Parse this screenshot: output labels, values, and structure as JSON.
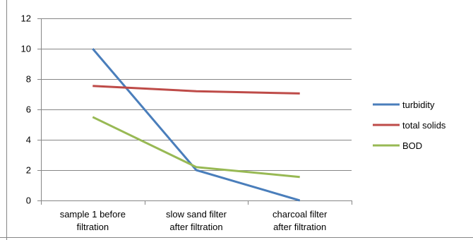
{
  "chart_data": {
    "type": "line",
    "title": "",
    "xlabel": "",
    "ylabel": "",
    "categories": [
      [
        "sample 1 before",
        "filtration"
      ],
      [
        "slow sand filter",
        "after filtration"
      ],
      [
        "charcoal filter",
        "after filtration"
      ]
    ],
    "ylim": [
      0,
      12
    ],
    "yticks": [
      0,
      2,
      4,
      6,
      8,
      10,
      12
    ],
    "grid": true,
    "legend_position": "right",
    "series": [
      {
        "name": "turbidity",
        "color": "#4a7ebb",
        "values": [
          10,
          2,
          0
        ]
      },
      {
        "name": "total solids",
        "color": "#be4b48",
        "values": [
          7.55,
          7.2,
          7.05
        ]
      },
      {
        "name": "BOD",
        "color": "#98b954",
        "values": [
          5.5,
          2.2,
          1.55
        ]
      }
    ]
  }
}
